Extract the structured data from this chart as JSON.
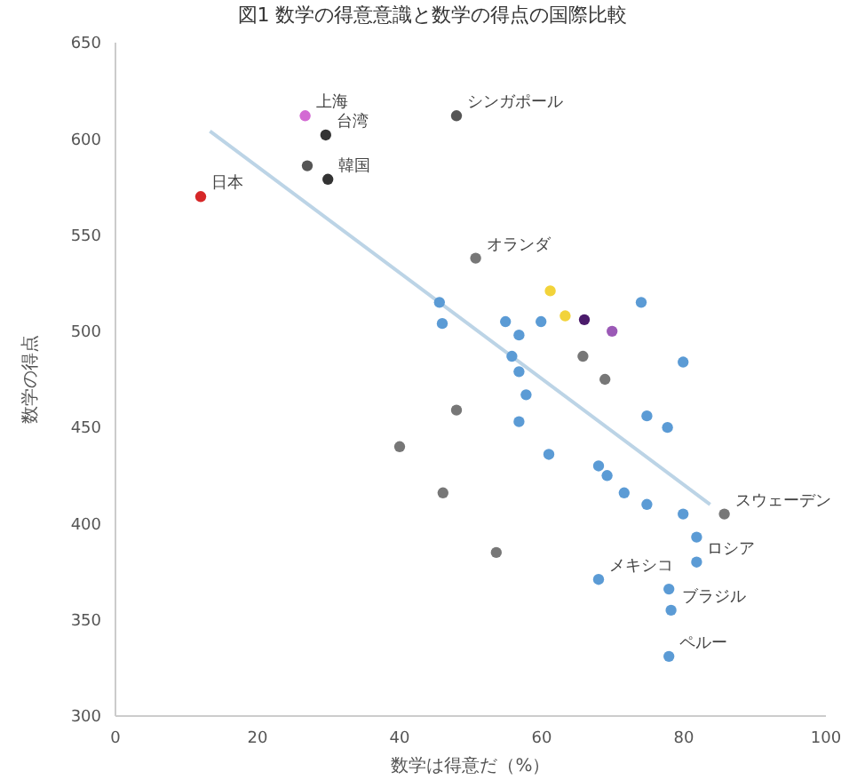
{
  "chart_data": {
    "type": "scatter",
    "title": "図1 数学の得意意識と数学の得点の国際比較",
    "xlabel": "数学は得意だ（%）",
    "ylabel": "数学の得点",
    "xlim": [
      0,
      100
    ],
    "xticks": [
      0,
      20,
      40,
      60,
      80,
      100
    ],
    "ylim": [
      300,
      650
    ],
    "yticks": [
      300,
      350,
      400,
      450,
      500,
      550,
      600,
      650
    ],
    "grid": false,
    "marker": "circle",
    "series": [
      {
        "x": [
          12,
          26.7,
          29.6,
          29.9,
          27,
          48,
          50.7,
          45.6,
          46,
          54.9,
          56.8,
          59.9,
          61.2,
          63.3,
          66,
          69.9,
          74,
          55.8,
          56.8,
          57.8,
          65.8,
          68.9,
          79.9,
          48,
          56.8,
          74.8,
          77.7,
          40,
          61,
          68,
          69.2,
          46.1,
          71.6,
          74.8,
          79.9,
          85.7,
          81.8,
          53.6,
          81.8,
          68,
          77.9,
          78.2,
          77.9
        ],
        "values": [
          570,
          612,
          602,
          579,
          586,
          612,
          538,
          515,
          504,
          505,
          498,
          505,
          521,
          508,
          506,
          500,
          515,
          487,
          479,
          467,
          487,
          475,
          484,
          459,
          453,
          456,
          450,
          440,
          436,
          430,
          425,
          416,
          416,
          410,
          405,
          405,
          393,
          385,
          380,
          371,
          366,
          355,
          331
        ],
        "colors": [
          "#d62728",
          "#d36ad3",
          "#333333",
          "#333333",
          "#555555",
          "#555555",
          "#777777",
          "#5b9bd5",
          "#5b9bd5",
          "#5b9bd5",
          "#5b9bd5",
          "#5b9bd5",
          "#f2d33a",
          "#f2d33a",
          "#4b1b6b",
          "#9b59b6",
          "#5b9bd5",
          "#5b9bd5",
          "#5b9bd5",
          "#5b9bd5",
          "#777777",
          "#777777",
          "#5b9bd5",
          "#777777",
          "#5b9bd5",
          "#5b9bd5",
          "#5b9bd5",
          "#777777",
          "#5b9bd5",
          "#5b9bd5",
          "#5b9bd5",
          "#777777",
          "#5b9bd5",
          "#5b9bd5",
          "#5b9bd5",
          "#777777",
          "#5b9bd5",
          "#777777",
          "#5b9bd5",
          "#5b9bd5",
          "#5b9bd5",
          "#5b9bd5",
          "#5b9bd5"
        ]
      },
      {
        "type": "line",
        "marker": "none",
        "color": "#bcd4e6",
        "x": [
          13.3,
          83.7
        ],
        "values": [
          604,
          410
        ]
      }
    ],
    "annotations": [
      {
        "text": "日本",
        "x": 12,
        "y": 570
      },
      {
        "text": "上海",
        "x": 26.7,
        "y": 612
      },
      {
        "text": "台湾",
        "x": 29.6,
        "y": 602
      },
      {
        "text": "韓国",
        "x": 29.9,
        "y": 579
      },
      {
        "text": "シンガポール",
        "x": 48,
        "y": 612
      },
      {
        "text": "オランダ",
        "x": 50.7,
        "y": 538
      },
      {
        "text": "スウェーデン",
        "x": 85.7,
        "y": 405
      },
      {
        "text": "ロシア",
        "x": 81.8,
        "y": 380
      },
      {
        "text": "メキシコ",
        "x": 68,
        "y": 371
      },
      {
        "text": "ブラジル",
        "x": 78.2,
        "y": 355
      },
      {
        "text": "ペルー",
        "x": 77.9,
        "y": 331
      }
    ]
  }
}
